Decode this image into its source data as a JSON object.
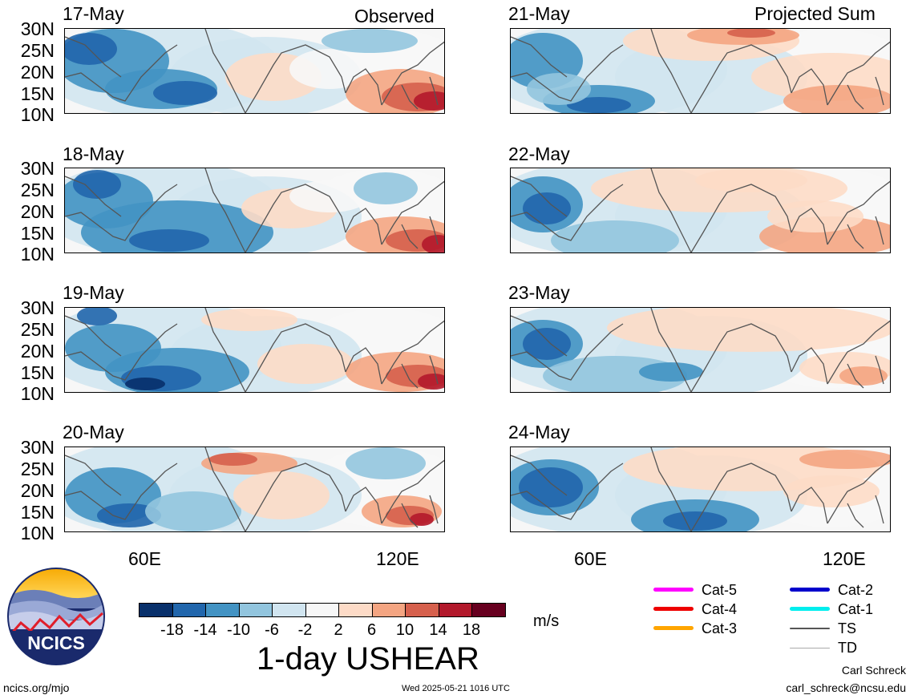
{
  "header": {
    "left_label": "Observed",
    "right_label": "Projected Sum"
  },
  "panels": [
    {
      "date": "17-May",
      "group": "observed"
    },
    {
      "date": "18-May",
      "group": "observed"
    },
    {
      "date": "19-May",
      "group": "observed"
    },
    {
      "date": "20-May",
      "group": "observed"
    },
    {
      "date": "21-May",
      "group": "projected"
    },
    {
      "date": "22-May",
      "group": "projected"
    },
    {
      "date": "23-May",
      "group": "projected"
    },
    {
      "date": "24-May",
      "group": "projected"
    }
  ],
  "lat_ticks": [
    "30N",
    "25N",
    "20N",
    "15N",
    "10N"
  ],
  "lon_ticks": [
    "60E",
    "120E"
  ],
  "colorbar": {
    "tick_labels": [
      "-18",
      "-14",
      "-10",
      "-6",
      "-2",
      "2",
      "6",
      "10",
      "14",
      "18"
    ],
    "colors": [
      "#08306b",
      "#2166ac",
      "#4393c3",
      "#92c5de",
      "#d1e5f0",
      "#f7f7f7",
      "#fddbc7",
      "#f4a582",
      "#d6604d",
      "#b2182b",
      "#67001f"
    ],
    "units": "m/s",
    "title": "1-day USHEAR"
  },
  "legend": {
    "items": [
      {
        "label": "Cat-5",
        "color": "#ff00ff"
      },
      {
        "label": "Cat-4",
        "color": "#ee0000"
      },
      {
        "label": "Cat-3",
        "color": "#ffa500"
      },
      {
        "label": "Cat-2",
        "color": "#0000cc"
      },
      {
        "label": "Cat-1",
        "color": "#00eeee"
      },
      {
        "label": "TS",
        "color": "#555555"
      },
      {
        "label": "TD",
        "color": "#aaaaaa"
      }
    ]
  },
  "logo": {
    "text": "NCICS"
  },
  "footer": {
    "url": "ncics.org/mjo",
    "timestamp": "Wed 2025-05-21 1016 UTC",
    "author": "Carl Schreck",
    "email": "carl_schreck@ncsu.edu"
  }
}
